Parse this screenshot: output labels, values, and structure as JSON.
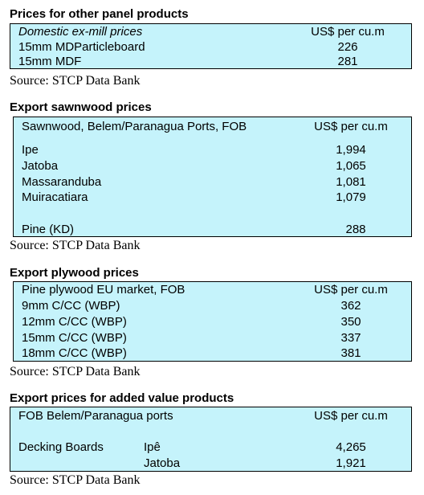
{
  "panel": {
    "title": "Prices for other panel products",
    "header_left": "Domestic ex-mill prices",
    "header_right": "US$ per cu.m",
    "rows": [
      {
        "label": "15mm MDParticleboard",
        "value": "226"
      },
      {
        "label": "15mm MDF",
        "value": "281"
      }
    ],
    "source": "Source: STCP Data Bank"
  },
  "sawnwood": {
    "title": "Export sawnwood prices",
    "header_left": "Sawnwood, Belem/Paranagua Ports, FOB",
    "header_right": "US$ per cu.m",
    "rows": [
      {
        "label": "Ipe",
        "value": "1,994"
      },
      {
        "label": "Jatoba",
        "value": "1,065"
      },
      {
        "label": "Massaranduba",
        "value": "1,081"
      },
      {
        "label": "Muiracatiara",
        "value": "1,079"
      },
      {
        "label": "Pine (KD)",
        "value": "288"
      }
    ],
    "source": "Source: STCP Data Bank"
  },
  "plywood": {
    "title": "Export plywood prices",
    "header_left": "Pine plywood EU market, FOB",
    "header_right": "US$ per cu.m",
    "rows": [
      {
        "label": "9mm C/CC (WBP)",
        "value": "362"
      },
      {
        "label": "12mm C/CC (WBP)",
        "value": "350"
      },
      {
        "label": "15mm C/CC (WBP)",
        "value": "337"
      },
      {
        "label": "18mm C/CC (WBP)",
        "value": "381"
      }
    ],
    "source": "Source: STCP Data Bank"
  },
  "added_value": {
    "title": "Export prices for added value products",
    "header_left": "FOB Belem/Paranagua ports",
    "header_right": "US$ per cu.m",
    "rows": [
      {
        "product": "Decking Boards",
        "species": "Ipê",
        "value": "4,265"
      },
      {
        "product": "",
        "species": "Jatoba",
        "value": "1,921"
      }
    ],
    "source": "Source: STCP Data Bank"
  }
}
